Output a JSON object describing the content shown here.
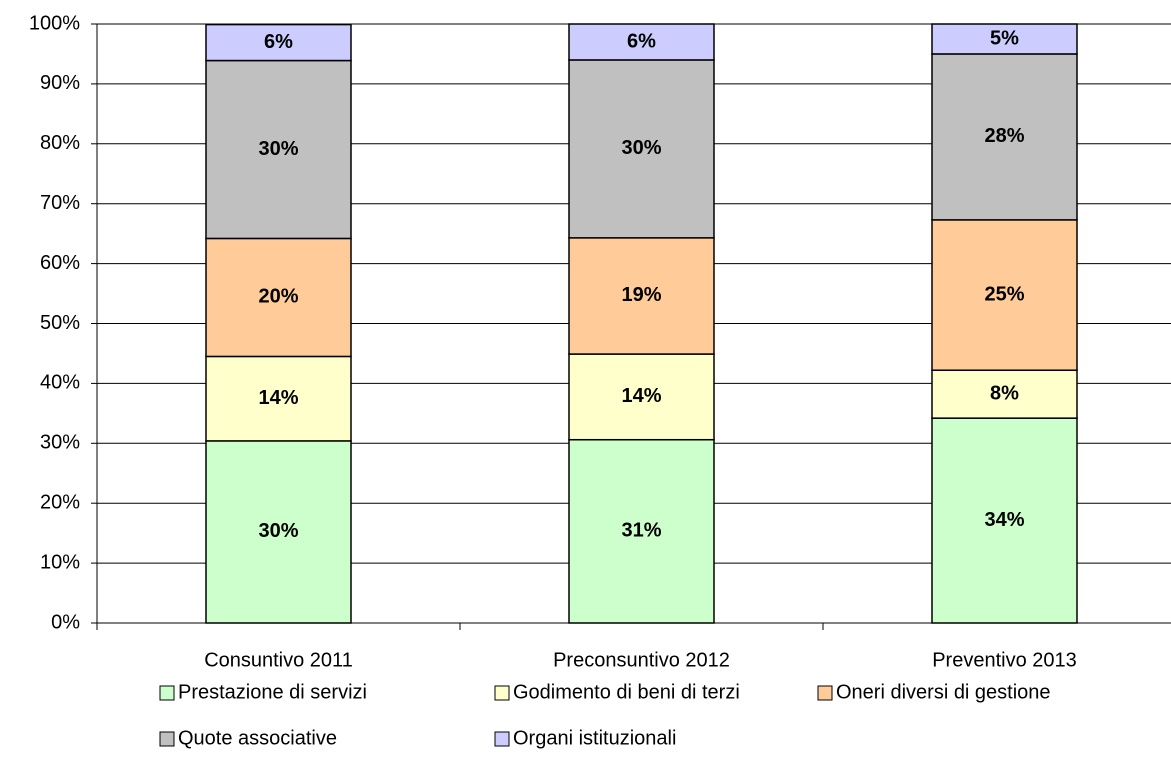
{
  "chart_data": {
    "type": "stacked_bar",
    "categories": [
      "Consuntivo 2011",
      "Preconsuntivo 2012",
      "Preventivo 2013"
    ],
    "series": [
      {
        "name": "Prestazione di servizi",
        "color": "#ccffcc",
        "values": [
          30.4,
          30.6,
          34.2
        ],
        "value_labels": [
          "30%",
          "31%",
          "34%"
        ]
      },
      {
        "name": "Godimento di beni di terzi",
        "color": "#ffffcc",
        "values": [
          14.1,
          14.3,
          8.0
        ],
        "value_labels": [
          "14%",
          "14%",
          "8%"
        ]
      },
      {
        "name": "Oneri diversi di gestione",
        "color": "#ffcc99",
        "values": [
          19.7,
          19.4,
          25.1
        ],
        "value_labels": [
          "20%",
          "19%",
          "25%"
        ]
      },
      {
        "name": "Quote associative",
        "color": "#c0c0c0",
        "values": [
          29.7,
          29.7,
          27.7
        ],
        "value_labels": [
          "30%",
          "30%",
          "28%"
        ]
      },
      {
        "name": "Organi istituzionali",
        "color": "#ccccff",
        "values": [
          6.0,
          6.0,
          5.0
        ],
        "value_labels": [
          "6%",
          "6%",
          "5%"
        ]
      }
    ],
    "ylim": [
      0,
      100
    ],
    "yticks": [
      {
        "value": 0,
        "label": "0%"
      },
      {
        "value": 10,
        "label": "10%"
      },
      {
        "value": 20,
        "label": "20%"
      },
      {
        "value": 30,
        "label": "30%"
      },
      {
        "value": 40,
        "label": "40%"
      },
      {
        "value": 50,
        "label": "50%"
      },
      {
        "value": 60,
        "label": "60%"
      },
      {
        "value": 70,
        "label": "70%"
      },
      {
        "value": 80,
        "label": "80%"
      },
      {
        "value": 90,
        "label": "90%"
      },
      {
        "value": 100,
        "label": "100%"
      }
    ],
    "grid": true,
    "legend": "bottom"
  }
}
